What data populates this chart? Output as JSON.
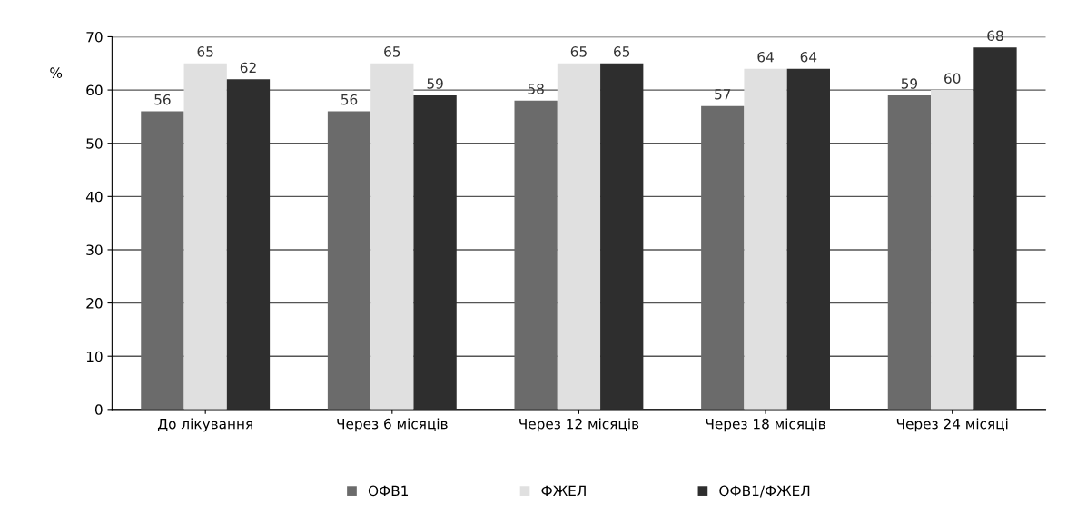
{
  "chart_data": {
    "type": "bar",
    "ylabel": "%",
    "categories": [
      "До лікування",
      "Через 6 місяців",
      "Через 12 місяців",
      "Через 18 місяців",
      "Через 24 місяці"
    ],
    "series": [
      {
        "name": "ОФВ1",
        "color": "#6b6b6b",
        "values": [
          56,
          56,
          58,
          57,
          59
        ]
      },
      {
        "name": "ФЖЕЛ",
        "color": "#e0e0e0",
        "values": [
          65,
          65,
          65,
          64,
          60
        ]
      },
      {
        "name": "ОФВ1/ФЖЕЛ",
        "color": "#2e2e2e",
        "values": [
          62,
          59,
          65,
          64,
          68
        ]
      }
    ],
    "ylim": [
      0,
      70
    ],
    "yticks": [
      0,
      10,
      20,
      30,
      40,
      50,
      60,
      70
    ],
    "grid": "y",
    "legend": "bottom",
    "data_labels": true
  }
}
